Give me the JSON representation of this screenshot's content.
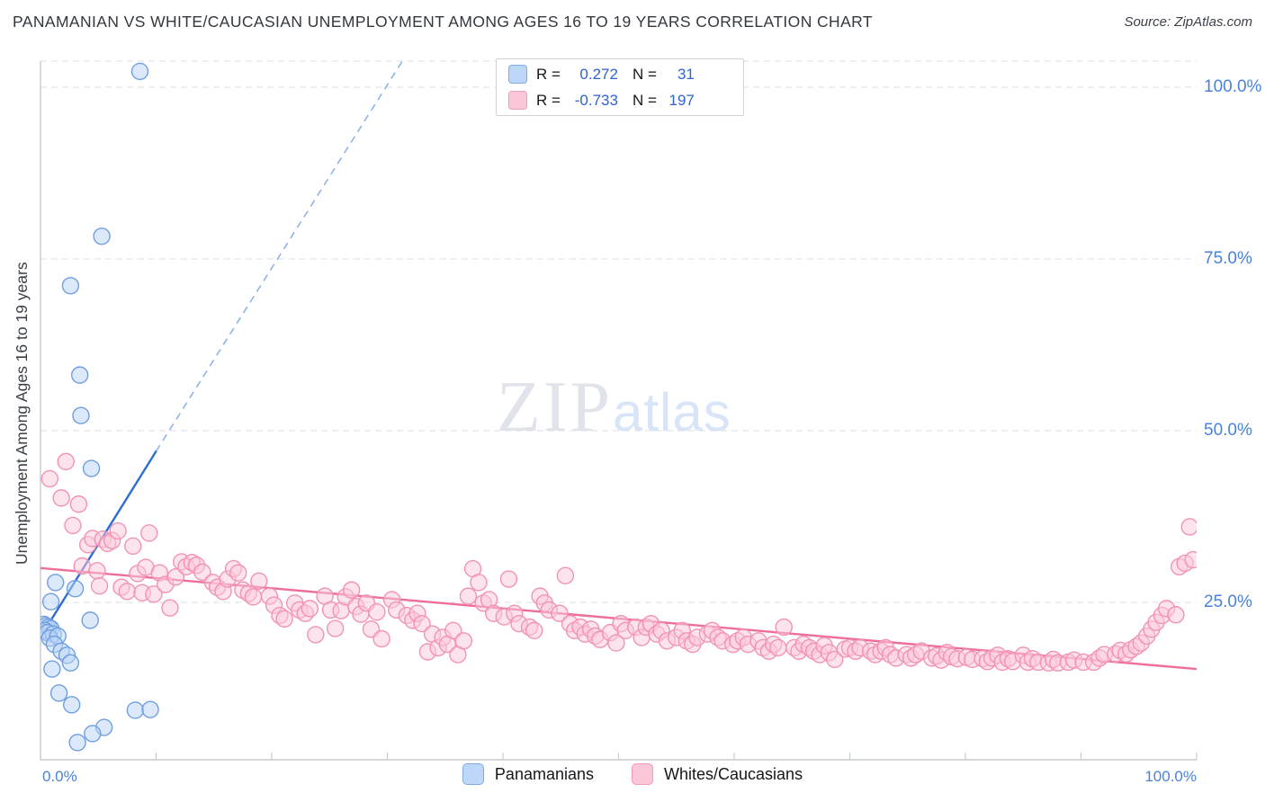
{
  "header": {
    "title": "PANAMANIAN VS WHITE/CAUCASIAN UNEMPLOYMENT AMONG AGES 16 TO 19 YEARS CORRELATION CHART",
    "source": "Source: ZipAtlas.com"
  },
  "watermark": {
    "zip": "ZIP",
    "atlas": "atlas"
  },
  "legend_box": {
    "rows": [
      {
        "r_label": "R =",
        "r_value": "0.272",
        "n_label": "N =",
        "n_value": "31",
        "fill": "#bdd7f8",
        "stroke": "#80abe8"
      },
      {
        "r_label": "R =",
        "r_value": "-0.733",
        "n_label": "N =",
        "n_value": "197",
        "fill": "#fbc6d8",
        "stroke": "#f29ab9"
      }
    ]
  },
  "bottom_legend": [
    {
      "label": "Panamanians",
      "fill": "#bdd7f8",
      "stroke": "#80abe8"
    },
    {
      "label": "Whites/Caucasians",
      "fill": "#fbc6d8",
      "stroke": "#f29ab9"
    }
  ],
  "chart_data": {
    "type": "scatter",
    "title": "PANAMANIAN VS WHITE/CAUCASIAN UNEMPLOYMENT AMONG AGES 16 TO 19 YEARS CORRELATION CHART",
    "xlabel": "",
    "ylabel": "Unemployment Among Ages 16 to 19 years",
    "xlim_pct": [
      0,
      100
    ],
    "ylim_pct": [
      0,
      105
    ],
    "grid": "horizontal-dashed",
    "legend_position": "bottom-center",
    "x_corner_labels": {
      "left": "0.0%",
      "right": "100.0%"
    },
    "y_ticks": [
      {
        "value": 100,
        "label": "100.0%"
      },
      {
        "value": 75,
        "label": "75.0%"
      },
      {
        "value": 50,
        "label": "50.0%"
      },
      {
        "value": 25,
        "label": "25.0%"
      }
    ],
    "x_minor_ticks_pct": [
      10,
      20,
      30,
      40,
      50,
      60,
      70,
      80,
      90,
      100
    ],
    "series": [
      {
        "name": "Panamanians",
        "r": 0.272,
        "n": 31,
        "fill": "#b9d3f7",
        "stroke": "#6f9fe0",
        "points": [
          [
            8.6,
            102.3
          ],
          [
            5.3,
            78.3
          ],
          [
            2.6,
            71.1
          ],
          [
            3.4,
            58.1
          ],
          [
            3.5,
            52.2
          ],
          [
            4.4,
            44.5
          ],
          [
            1.3,
            27.9
          ],
          [
            3.0,
            27.0
          ],
          [
            0.9,
            25.1
          ],
          [
            4.3,
            22.4
          ],
          [
            0.3,
            21.8
          ],
          [
            0.5,
            21.6
          ],
          [
            0.7,
            21.4
          ],
          [
            0.9,
            21.2
          ],
          [
            0.4,
            20.9
          ],
          [
            0.6,
            20.6
          ],
          [
            1.1,
            20.4
          ],
          [
            0.8,
            19.8
          ],
          [
            1.5,
            20.1
          ],
          [
            1.2,
            18.9
          ],
          [
            1.8,
            17.9
          ],
          [
            2.3,
            17.3
          ],
          [
            2.6,
            16.2
          ],
          [
            1.0,
            15.3
          ],
          [
            1.6,
            11.8
          ],
          [
            2.7,
            10.1
          ],
          [
            8.2,
            9.3
          ],
          [
            9.5,
            9.4
          ],
          [
            5.5,
            6.8
          ],
          [
            4.5,
            5.9
          ],
          [
            3.2,
            4.6
          ]
        ]
      },
      {
        "name": "Whites/Caucasians",
        "r": -0.733,
        "n": 197,
        "fill": "#fbc9da",
        "stroke": "#f292b5",
        "points": [
          [
            0.8,
            43.0
          ],
          [
            1.8,
            40.2
          ],
          [
            2.2,
            45.5
          ],
          [
            2.8,
            36.2
          ],
          [
            3.3,
            39.3
          ],
          [
            3.6,
            30.3
          ],
          [
            4.1,
            33.4
          ],
          [
            4.5,
            34.3
          ],
          [
            4.9,
            29.6
          ],
          [
            5.1,
            27.4
          ],
          [
            5.4,
            34.2
          ],
          [
            5.8,
            33.6
          ],
          [
            6.2,
            34.0
          ],
          [
            6.7,
            35.4
          ],
          [
            7.0,
            27.2
          ],
          [
            7.5,
            26.6
          ],
          [
            8.0,
            33.2
          ],
          [
            8.4,
            29.2
          ],
          [
            8.8,
            26.4
          ],
          [
            9.1,
            30.1
          ],
          [
            9.4,
            35.1
          ],
          [
            9.8,
            26.2
          ],
          [
            10.3,
            29.3
          ],
          [
            10.8,
            27.6
          ],
          [
            11.2,
            24.2
          ],
          [
            11.7,
            28.7
          ],
          [
            12.2,
            30.9
          ],
          [
            12.6,
            30.2
          ],
          [
            13.1,
            30.8
          ],
          [
            13.5,
            30.4
          ],
          [
            14.0,
            29.4
          ],
          [
            14.9,
            27.9
          ],
          [
            15.3,
            27.2
          ],
          [
            15.8,
            26.6
          ],
          [
            16.2,
            28.4
          ],
          [
            16.7,
            29.9
          ],
          [
            17.1,
            29.3
          ],
          [
            17.5,
            26.8
          ],
          [
            18.0,
            26.3
          ],
          [
            18.4,
            25.8
          ],
          [
            18.9,
            28.1
          ],
          [
            19.8,
            25.9
          ],
          [
            20.2,
            24.6
          ],
          [
            20.7,
            23.1
          ],
          [
            21.1,
            22.6
          ],
          [
            22.0,
            24.9
          ],
          [
            22.4,
            23.9
          ],
          [
            22.9,
            23.4
          ],
          [
            23.3,
            24.1
          ],
          [
            23.8,
            20.3
          ],
          [
            24.6,
            25.9
          ],
          [
            25.1,
            23.9
          ],
          [
            25.5,
            21.2
          ],
          [
            26.0,
            23.8
          ],
          [
            26.4,
            25.8
          ],
          [
            26.9,
            26.8
          ],
          [
            27.3,
            24.4
          ],
          [
            27.7,
            23.3
          ],
          [
            28.2,
            24.9
          ],
          [
            28.6,
            21.1
          ],
          [
            29.1,
            23.6
          ],
          [
            29.5,
            19.7
          ],
          [
            30.4,
            25.4
          ],
          [
            30.8,
            23.9
          ],
          [
            31.7,
            23.1
          ],
          [
            32.2,
            22.4
          ],
          [
            32.6,
            23.4
          ],
          [
            33.0,
            21.9
          ],
          [
            33.5,
            17.8
          ],
          [
            33.9,
            20.4
          ],
          [
            34.4,
            18.4
          ],
          [
            34.8,
            19.9
          ],
          [
            35.2,
            18.9
          ],
          [
            35.7,
            20.9
          ],
          [
            36.1,
            17.4
          ],
          [
            36.6,
            19.4
          ],
          [
            37.0,
            25.9
          ],
          [
            37.4,
            29.9
          ],
          [
            37.9,
            27.9
          ],
          [
            38.3,
            24.9
          ],
          [
            38.8,
            25.4
          ],
          [
            39.2,
            23.4
          ],
          [
            40.1,
            22.9
          ],
          [
            40.5,
            28.4
          ],
          [
            41.0,
            23.4
          ],
          [
            41.4,
            21.9
          ],
          [
            42.3,
            21.4
          ],
          [
            42.7,
            20.9
          ],
          [
            43.2,
            25.9
          ],
          [
            43.6,
            24.9
          ],
          [
            44.0,
            23.9
          ],
          [
            44.9,
            23.4
          ],
          [
            45.4,
            28.9
          ],
          [
            45.8,
            21.9
          ],
          [
            46.2,
            20.9
          ],
          [
            46.7,
            21.4
          ],
          [
            47.1,
            20.4
          ],
          [
            47.6,
            21.1
          ],
          [
            48.0,
            20.1
          ],
          [
            48.4,
            19.6
          ],
          [
            49.3,
            20.6
          ],
          [
            49.8,
            19.1
          ],
          [
            50.2,
            21.9
          ],
          [
            50.6,
            20.9
          ],
          [
            51.5,
            21.4
          ],
          [
            52.0,
            19.9
          ],
          [
            52.4,
            21.4
          ],
          [
            52.8,
            21.9
          ],
          [
            53.3,
            20.4
          ],
          [
            53.7,
            20.9
          ],
          [
            54.2,
            19.4
          ],
          [
            55.0,
            19.9
          ],
          [
            55.5,
            20.9
          ],
          [
            55.9,
            19.4
          ],
          [
            56.4,
            18.9
          ],
          [
            56.8,
            19.9
          ],
          [
            57.7,
            20.4
          ],
          [
            58.1,
            20.9
          ],
          [
            58.6,
            19.9
          ],
          [
            59.0,
            19.4
          ],
          [
            59.9,
            18.9
          ],
          [
            60.3,
            19.4
          ],
          [
            60.8,
            19.9
          ],
          [
            61.2,
            18.9
          ],
          [
            62.1,
            19.4
          ],
          [
            62.5,
            18.4
          ],
          [
            63.0,
            17.9
          ],
          [
            63.4,
            18.9
          ],
          [
            63.8,
            18.4
          ],
          [
            64.3,
            21.4
          ],
          [
            65.2,
            18.4
          ],
          [
            65.6,
            17.9
          ],
          [
            66.0,
            18.9
          ],
          [
            66.5,
            18.4
          ],
          [
            66.9,
            17.9
          ],
          [
            67.4,
            17.4
          ],
          [
            67.8,
            18.7
          ],
          [
            68.2,
            17.7
          ],
          [
            68.7,
            16.7
          ],
          [
            69.6,
            18.2
          ],
          [
            70.0,
            18.4
          ],
          [
            70.5,
            17.9
          ],
          [
            70.9,
            18.4
          ],
          [
            71.8,
            17.9
          ],
          [
            72.2,
            17.4
          ],
          [
            72.7,
            17.9
          ],
          [
            73.1,
            18.4
          ],
          [
            73.5,
            17.4
          ],
          [
            74.0,
            16.9
          ],
          [
            74.9,
            17.4
          ],
          [
            75.3,
            16.9
          ],
          [
            75.7,
            17.4
          ],
          [
            76.2,
            17.9
          ],
          [
            77.1,
            16.9
          ],
          [
            77.5,
            17.2
          ],
          [
            77.9,
            16.6
          ],
          [
            78.4,
            17.7
          ],
          [
            78.8,
            17.1
          ],
          [
            79.3,
            16.8
          ],
          [
            80.1,
            17.0
          ],
          [
            80.6,
            16.7
          ],
          [
            81.5,
            16.8
          ],
          [
            81.9,
            16.4
          ],
          [
            82.3,
            16.9
          ],
          [
            82.8,
            17.3
          ],
          [
            83.2,
            16.3
          ],
          [
            83.7,
            16.8
          ],
          [
            84.1,
            16.4
          ],
          [
            85.0,
            17.3
          ],
          [
            85.4,
            16.3
          ],
          [
            85.8,
            16.8
          ],
          [
            86.3,
            16.3
          ],
          [
            87.2,
            16.2
          ],
          [
            87.6,
            16.7
          ],
          [
            88.0,
            16.2
          ],
          [
            88.9,
            16.3
          ],
          [
            89.4,
            16.6
          ],
          [
            90.2,
            16.3
          ],
          [
            91.1,
            16.3
          ],
          [
            91.6,
            16.9
          ],
          [
            92.0,
            17.4
          ],
          [
            93.0,
            17.5
          ],
          [
            93.4,
            18.0
          ],
          [
            93.9,
            17.5
          ],
          [
            94.3,
            18.1
          ],
          [
            94.8,
            18.6
          ],
          [
            95.2,
            19.1
          ],
          [
            95.7,
            20.1
          ],
          [
            96.1,
            21.1
          ],
          [
            96.5,
            22.1
          ],
          [
            97.0,
            23.1
          ],
          [
            97.4,
            24.1
          ],
          [
            98.2,
            23.2
          ],
          [
            98.5,
            30.2
          ],
          [
            99.0,
            30.7
          ],
          [
            99.4,
            36.0
          ],
          [
            99.7,
            31.2
          ]
        ]
      }
    ],
    "trend_lines": [
      {
        "series": "Panamanians",
        "color": "#2d6fd1",
        "dash_color": "#8fb3ea",
        "solid": [
          [
            0.2,
            20.5
          ],
          [
            10,
            47
          ]
        ],
        "dashed": [
          [
            10,
            47
          ],
          [
            32.5,
            107
          ]
        ]
      },
      {
        "series": "Whites/Caucasians",
        "color": "#ee6e98",
        "solid": [
          [
            0,
            30
          ],
          [
            100,
            15.3
          ]
        ]
      }
    ]
  }
}
